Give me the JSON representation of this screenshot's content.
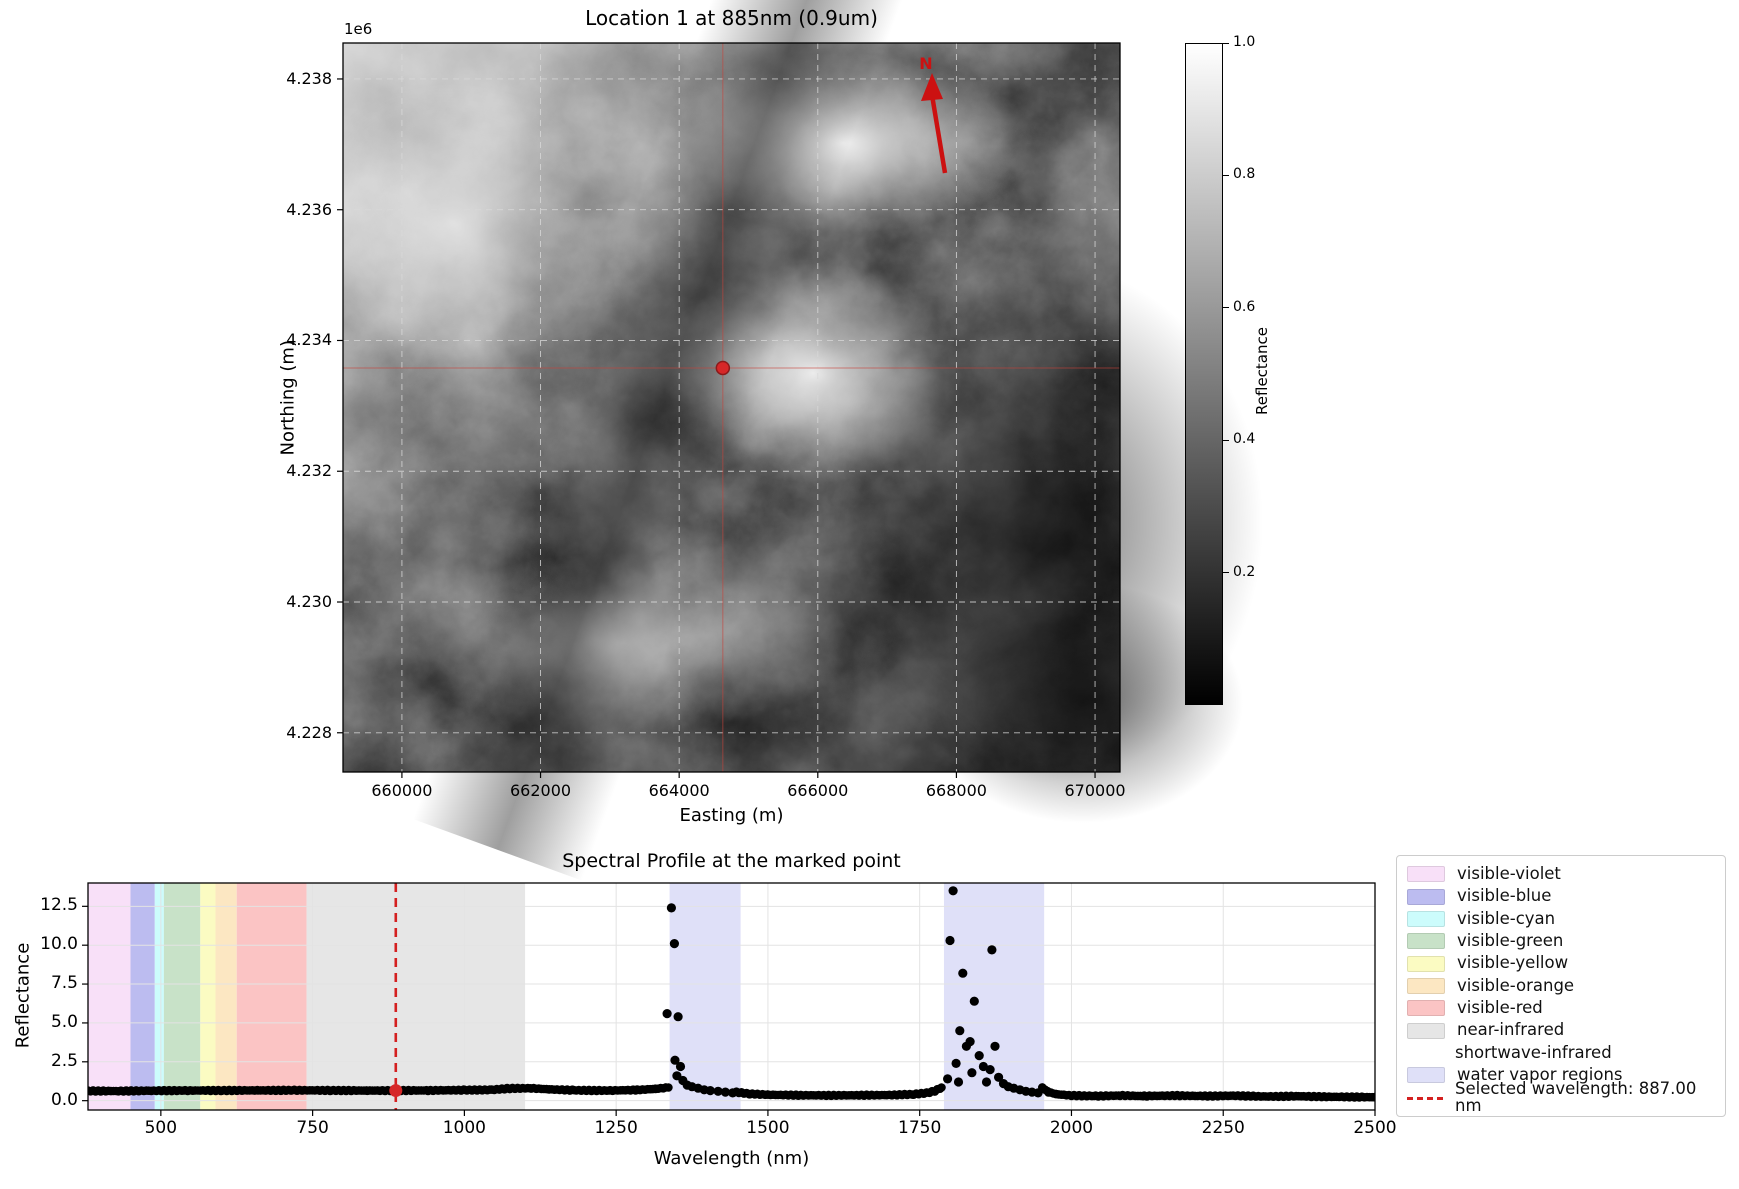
{
  "colors": {
    "marker_red": "#d62728",
    "crosshair_red": "#c8423a",
    "north_arrow_red": "#cc1111",
    "map_grid": "#d9d9d9",
    "spec_grid": "#e3e3e3",
    "selected_line_red": "#d42020",
    "point_black": "#000000"
  },
  "chart_data": [
    {
      "type": "heatmap",
      "title": "Location 1 at 885nm (0.9um)",
      "xlabel": "Easting (m)",
      "ylabel": "Northing (m)",
      "y_offset_label": "1e6",
      "north_arrow_label": "N",
      "xlim": [
        659150,
        670360
      ],
      "ylim": [
        4227400,
        4238550
      ],
      "xticks": [
        660000,
        662000,
        664000,
        666000,
        668000,
        670000
      ],
      "xticklabels": [
        "660000",
        "662000",
        "664000",
        "666000",
        "668000",
        "670000"
      ],
      "yticks": [
        4238000,
        4236000,
        4234000,
        4232000,
        4230000,
        4228000
      ],
      "yticklabels": [
        "4.238",
        "4.236",
        "4.234",
        "4.232",
        "4.230",
        "4.228"
      ],
      "colormap": "gray",
      "marked_point": {
        "easting": 664630,
        "northing": 4233580
      },
      "colorbar": {
        "label": "Reflectance",
        "tick_values": [
          1.0,
          0.8,
          0.6,
          0.4,
          0.2
        ],
        "tick_labels": [
          "1.0",
          "0.8",
          "0.6",
          "0.4",
          "0.2"
        ],
        "vmin": 0.0,
        "vmax": 1.0
      }
    },
    {
      "type": "scatter",
      "title": "Spectral Profile at the marked point",
      "xlabel": "Wavelength (nm)",
      "ylabel": "Reflectance",
      "xlim": [
        380,
        2500
      ],
      "ylim": [
        -0.6,
        14.0
      ],
      "xticks": [
        500,
        750,
        1000,
        1250,
        1500,
        1750,
        2000,
        2250,
        2500
      ],
      "xticklabels": [
        "500",
        "750",
        "1000",
        "1250",
        "1500",
        "1750",
        "2000",
        "2250",
        "2500"
      ],
      "yticks": [
        0.0,
        2.5,
        5.0,
        7.5,
        10.0,
        12.5
      ],
      "yticklabels": [
        "0.0",
        "2.5",
        "5.0",
        "7.5",
        "10.0",
        "12.5"
      ],
      "grid": true,
      "bands": [
        {
          "name": "visible-violet",
          "range": [
            380,
            450
          ],
          "color": "#f8e0f8"
        },
        {
          "name": "visible-blue",
          "range": [
            450,
            490
          ],
          "color": "#bcbcf0"
        },
        {
          "name": "visible-cyan",
          "range": [
            490,
            505
          ],
          "color": "#ccfcfc"
        },
        {
          "name": "visible-green",
          "range": [
            505,
            565
          ],
          "color": "#c8e2c8"
        },
        {
          "name": "visible-yellow",
          "range": [
            565,
            590
          ],
          "color": "#fbfbc2"
        },
        {
          "name": "visible-orange",
          "range": [
            590,
            625
          ],
          "color": "#fce7c2"
        },
        {
          "name": "visible-red",
          "range": [
            625,
            740
          ],
          "color": "#fbc4c4"
        },
        {
          "name": "near-infrared",
          "range": [
            740,
            1100
          ],
          "color": "#e6e6e6"
        },
        {
          "name": "shortwave-infrared",
          "range": [
            1100,
            2500
          ],
          "color": null
        }
      ],
      "water_vapor": {
        "color": "#dfe0f8",
        "regions": [
          [
            1338,
            1455
          ],
          [
            1790,
            1955
          ]
        ]
      },
      "selected_wavelength_nm": 887.0,
      "selected_point": {
        "wavelength": 887.0,
        "reflectance": 0.65
      },
      "baseline_segments": [
        [
          [
            380,
            0.63
          ],
          [
            430,
            0.62
          ],
          [
            480,
            0.64
          ],
          [
            540,
            0.65
          ],
          [
            600,
            0.66
          ],
          [
            660,
            0.66
          ],
          [
            720,
            0.67
          ],
          [
            780,
            0.66
          ],
          [
            840,
            0.65
          ],
          [
            887,
            0.65
          ],
          [
            940,
            0.66
          ],
          [
            1000,
            0.68
          ],
          [
            1045,
            0.7
          ],
          [
            1075,
            0.79
          ],
          [
            1110,
            0.8
          ],
          [
            1140,
            0.73
          ],
          [
            1180,
            0.67
          ],
          [
            1240,
            0.65
          ],
          [
            1285,
            0.69
          ],
          [
            1315,
            0.76
          ],
          [
            1336,
            0.85
          ]
        ],
        [
          [
            1448,
            0.55
          ],
          [
            1470,
            0.44
          ],
          [
            1500,
            0.38
          ],
          [
            1550,
            0.35
          ],
          [
            1600,
            0.34
          ],
          [
            1650,
            0.35
          ],
          [
            1700,
            0.36
          ],
          [
            1740,
            0.41
          ],
          [
            1762,
            0.5
          ],
          [
            1775,
            0.62
          ],
          [
            1786,
            0.85
          ]
        ],
        [
          [
            1952,
            0.85
          ],
          [
            1962,
            0.55
          ],
          [
            1975,
            0.42
          ],
          [
            2000,
            0.33
          ],
          [
            2040,
            0.3
          ],
          [
            2080,
            0.33
          ],
          [
            2120,
            0.3
          ],
          [
            2170,
            0.33
          ],
          [
            2220,
            0.3
          ],
          [
            2270,
            0.32
          ],
          [
            2320,
            0.27
          ],
          [
            2370,
            0.29
          ],
          [
            2420,
            0.25
          ],
          [
            2470,
            0.24
          ],
          [
            2500,
            0.22
          ]
        ]
      ],
      "spike_points": [
        [
          1334,
          5.6
        ],
        [
          1341,
          12.4
        ],
        [
          1346,
          10.1
        ],
        [
          1347,
          2.6
        ],
        [
          1350,
          1.6
        ],
        [
          1352,
          5.4
        ],
        [
          1356,
          2.2
        ],
        [
          1360,
          1.3
        ],
        [
          1367,
          1.0
        ],
        [
          1375,
          0.9
        ],
        [
          1385,
          0.8
        ],
        [
          1395,
          0.7
        ],
        [
          1405,
          0.65
        ],
        [
          1418,
          0.6
        ],
        [
          1430,
          0.55
        ],
        [
          1442,
          0.5
        ],
        [
          1796,
          1.4
        ],
        [
          1800,
          10.3
        ],
        [
          1805,
          13.5
        ],
        [
          1810,
          2.4
        ],
        [
          1814,
          1.2
        ],
        [
          1816,
          4.5
        ],
        [
          1821,
          8.2
        ],
        [
          1827,
          3.5
        ],
        [
          1833,
          3.8
        ],
        [
          1836,
          1.8
        ],
        [
          1840,
          6.4
        ],
        [
          1848,
          2.9
        ],
        [
          1855,
          2.2
        ],
        [
          1860,
          1.2
        ],
        [
          1866,
          2.0
        ],
        [
          1869,
          9.7
        ],
        [
          1874,
          3.5
        ],
        [
          1880,
          1.5
        ],
        [
          1888,
          1.1
        ],
        [
          1896,
          0.9
        ],
        [
          1905,
          0.8
        ],
        [
          1915,
          0.7
        ],
        [
          1925,
          0.6
        ],
        [
          1935,
          0.55
        ],
        [
          1945,
          0.5
        ]
      ],
      "legend": [
        {
          "label": "visible-violet",
          "swatch": "patch",
          "color": "#f8e0f8"
        },
        {
          "label": "visible-blue",
          "swatch": "patch",
          "color": "#bcbcf0"
        },
        {
          "label": "visible-cyan",
          "swatch": "patch",
          "color": "#ccfcfc"
        },
        {
          "label": "visible-green",
          "swatch": "patch",
          "color": "#c8e2c8"
        },
        {
          "label": "visible-yellow",
          "swatch": "patch",
          "color": "#fbfbc2"
        },
        {
          "label": "visible-orange",
          "swatch": "patch",
          "color": "#fce7c2"
        },
        {
          "label": "visible-red",
          "swatch": "patch",
          "color": "#fbc4c4"
        },
        {
          "label": "near-infrared",
          "swatch": "patch",
          "color": "#e6e6e6"
        },
        {
          "label": "shortwave-infrared",
          "swatch": "none",
          "color": null
        },
        {
          "label": "water vapor regions",
          "swatch": "patch",
          "color": "#dfe0f8"
        },
        {
          "label": "Selected wavelength: 887.00 nm",
          "swatch": "dashed-line",
          "color": "#d42020"
        }
      ]
    }
  ]
}
